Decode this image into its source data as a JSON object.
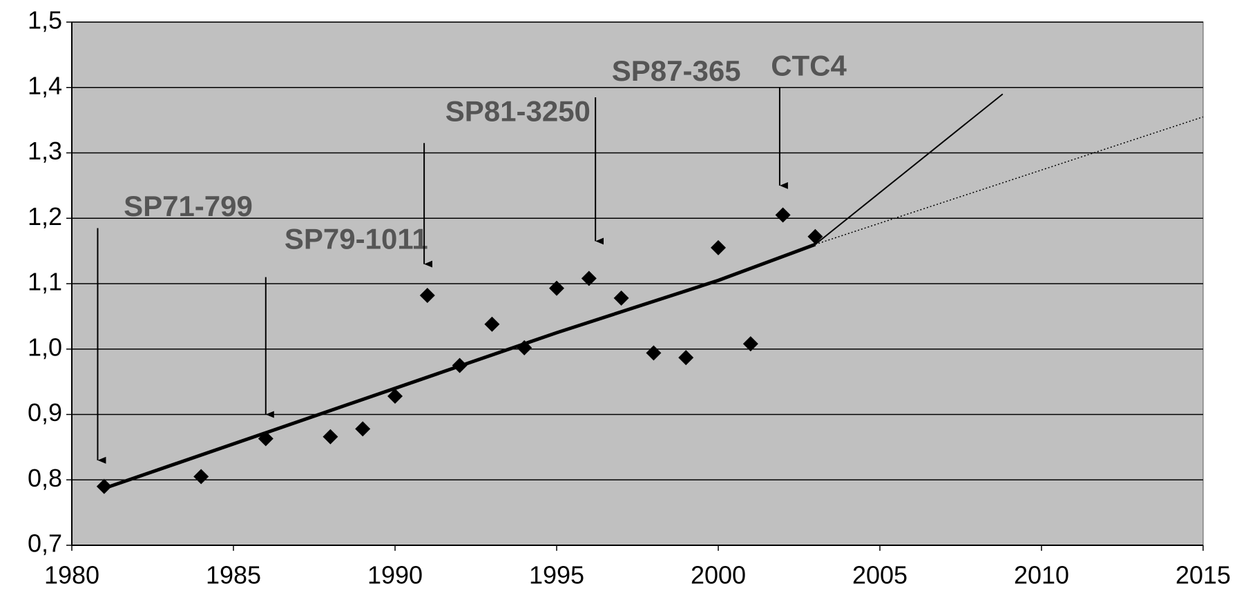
{
  "chart_data": {
    "type": "scatter",
    "xlim": [
      1980,
      2015
    ],
    "xticks": [
      1980,
      1985,
      1990,
      1995,
      2000,
      2005,
      2010,
      2015
    ],
    "ylim": [
      0.7,
      1.5
    ],
    "yticks": [
      {
        "value": 0.7,
        "label": "0,7"
      },
      {
        "value": 0.8,
        "label": "0,8"
      },
      {
        "value": 0.9,
        "label": "0,9"
      },
      {
        "value": 1.0,
        "label": "1,0"
      },
      {
        "value": 1.1,
        "label": "1,1"
      },
      {
        "value": 1.2,
        "label": "1,2"
      },
      {
        "value": 1.3,
        "label": "1,3"
      },
      {
        "value": 1.4,
        "label": "1,4"
      },
      {
        "value": 1.5,
        "label": "1,5"
      }
    ],
    "grid": true,
    "series": [
      {
        "kind": "points",
        "color": "#000000",
        "x": [
          1981,
          1984,
          1986,
          1988,
          1989,
          1990,
          1991,
          1992,
          1993,
          1994,
          1995,
          1996,
          1997,
          1998,
          1999,
          2000,
          2001,
          2002,
          2003
        ],
        "values": [
          0.79,
          0.805,
          0.863,
          0.866,
          0.878,
          0.928,
          1.082,
          0.975,
          1.038,
          1.002,
          1.093,
          1.108,
          1.078,
          0.994,
          0.987,
          1.155,
          1.008,
          1.205,
          1.172
        ]
      },
      {
        "kind": "trend",
        "color": "#000000",
        "x": [
          1981,
          1990,
          1995,
          2000,
          2003
        ],
        "values": [
          0.787,
          0.94,
          1.025,
          1.105,
          1.16
        ]
      },
      {
        "kind": "projection",
        "color": "#000000",
        "x": [
          2003,
          2008.8
        ],
        "values": [
          1.16,
          1.39
        ]
      },
      {
        "kind": "projection-dotted",
        "color": "#000000",
        "x": [
          2003,
          2015
        ],
        "values": [
          1.16,
          1.355
        ]
      }
    ],
    "annotations": [
      {
        "text": "SP71-799",
        "x": 1980.8,
        "text_x": 1983.6,
        "text_y": 1.215,
        "arrow": [
          1.185,
          0.83
        ]
      },
      {
        "text": "SP79-1011",
        "x": 1986,
        "text_x": 1988.8,
        "text_y": 1.165,
        "arrow": [
          1.11,
          0.9
        ]
      },
      {
        "text": "SP81-3250",
        "x": 1990.9,
        "text_x": 1993.8,
        "text_y": 1.36,
        "arrow": [
          1.315,
          1.13
        ]
      },
      {
        "text": "SP87-365",
        "x": 1996.2,
        "text_x": 1998.7,
        "text_y": 1.422,
        "arrow": [
          1.385,
          1.165
        ]
      },
      {
        "text": "CTC4",
        "x": 2001.9,
        "text_x": 2002.8,
        "text_y": 1.43,
        "arrow": [
          1.4,
          1.25
        ]
      }
    ]
  }
}
